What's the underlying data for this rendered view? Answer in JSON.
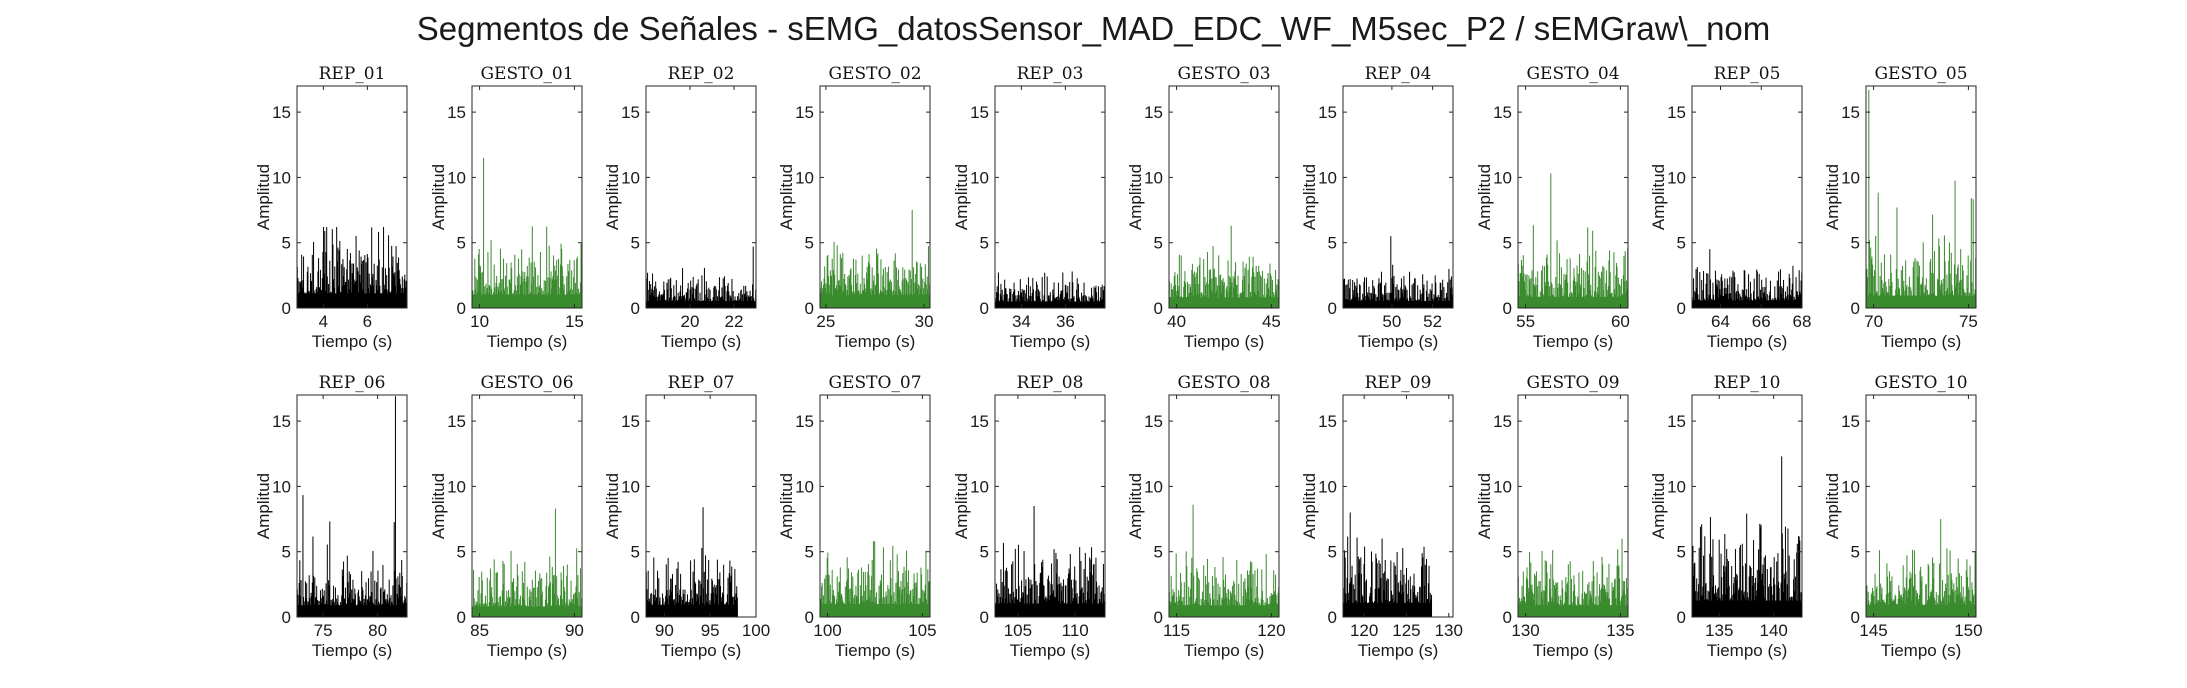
{
  "title": "Segmentos de Señales - sEMG_datosSensor_MAD_EDC_WF_M5sec_P2 / sEMGraw\\_nom",
  "colors": {
    "rep": "#000000",
    "gesto": "#3a8a2e",
    "axis": "#262626"
  },
  "chart_data": [
    {
      "type": "bar",
      "title": "REP_01",
      "kind": "rep",
      "xlabel": "Tiempo (s)",
      "ylabel": "Amplitud",
      "xlim": [
        2.8,
        7.8
      ],
      "ylim": [
        0,
        17
      ],
      "xticks": [
        4,
        6
      ],
      "yticks": [
        0,
        5,
        10,
        15
      ],
      "x_range": [
        2.8,
        7.8
      ],
      "mean_level": 2.5,
      "peak": 6.2
    },
    {
      "type": "bar",
      "title": "GESTO_01",
      "kind": "gesto",
      "xlabel": "Tiempo (s)",
      "ylabel": "Amplitud",
      "xlim": [
        9.6,
        15.4
      ],
      "ylim": [
        0,
        17
      ],
      "xticks": [
        10,
        15
      ],
      "yticks": [
        0,
        5,
        10,
        15
      ],
      "x_range": [
        9.6,
        15.4
      ],
      "mean_level": 2.3,
      "peak": 11.5
    },
    {
      "type": "bar",
      "title": "REP_02",
      "kind": "rep",
      "xlabel": "Tiempo (s)",
      "ylabel": "Amplitud",
      "xlim": [
        18,
        23
      ],
      "ylim": [
        0,
        17
      ],
      "xticks": [
        20,
        22
      ],
      "yticks": [
        0,
        5,
        10,
        15
      ],
      "x_range": [
        18,
        23
      ],
      "mean_level": 1.2,
      "peak": 4.7
    },
    {
      "type": "bar",
      "title": "GESTO_02",
      "kind": "gesto",
      "xlabel": "Tiempo (s)",
      "ylabel": "Amplitud",
      "xlim": [
        24.7,
        30.3
      ],
      "ylim": [
        0,
        17
      ],
      "xticks": [
        25,
        30
      ],
      "yticks": [
        0,
        5,
        10,
        15
      ],
      "x_range": [
        24.7,
        30.3
      ],
      "mean_level": 2.2,
      "peak": 7.5
    },
    {
      "type": "bar",
      "title": "REP_03",
      "kind": "rep",
      "xlabel": "Tiempo (s)",
      "ylabel": "Amplitud",
      "xlim": [
        32.8,
        37.8
      ],
      "ylim": [
        0,
        17
      ],
      "xticks": [
        34,
        36
      ],
      "yticks": [
        0,
        5,
        10,
        15
      ],
      "x_range": [
        32.8,
        37.8
      ],
      "mean_level": 1.1,
      "peak": 2.8
    },
    {
      "type": "bar",
      "title": "GESTO_03",
      "kind": "gesto",
      "xlabel": "Tiempo (s)",
      "ylabel": "Amplitud",
      "xlim": [
        39.6,
        45.4
      ],
      "ylim": [
        0,
        17
      ],
      "xticks": [
        40,
        45
      ],
      "yticks": [
        0,
        5,
        10,
        15
      ],
      "x_range": [
        39.6,
        45.4
      ],
      "mean_level": 1.8,
      "peak": 6.3
    },
    {
      "type": "bar",
      "title": "REP_04",
      "kind": "rep",
      "xlabel": "Tiempo (s)",
      "ylabel": "Amplitud",
      "xlim": [
        47.6,
        53
      ],
      "ylim": [
        0,
        17
      ],
      "xticks": [
        50,
        52
      ],
      "yticks": [
        0,
        5,
        10,
        15
      ],
      "x_range": [
        47.6,
        53
      ],
      "mean_level": 1.2,
      "peak": 5.5
    },
    {
      "type": "bar",
      "title": "GESTO_04",
      "kind": "gesto",
      "xlabel": "Tiempo (s)",
      "ylabel": "Amplitud",
      "xlim": [
        54.6,
        60.4
      ],
      "ylim": [
        0,
        17
      ],
      "xticks": [
        55,
        60
      ],
      "yticks": [
        0,
        5,
        10,
        15
      ],
      "x_range": [
        54.6,
        60.4
      ],
      "mean_level": 1.9,
      "peak": 10.3
    },
    {
      "type": "bar",
      "title": "REP_05",
      "kind": "rep",
      "xlabel": "Tiempo (s)",
      "ylabel": "Amplitud",
      "xlim": [
        62.6,
        68
      ],
      "ylim": [
        0,
        17
      ],
      "xticks": [
        64,
        66,
        68
      ],
      "yticks": [
        0,
        5,
        10,
        15
      ],
      "x_range": [
        62.6,
        68
      ],
      "mean_level": 1.3,
      "peak": 4.5
    },
    {
      "type": "bar",
      "title": "GESTO_05",
      "kind": "gesto",
      "xlabel": "Tiempo (s)",
      "ylabel": "Amplitud",
      "xlim": [
        69.6,
        75.4
      ],
      "ylim": [
        0,
        17
      ],
      "xticks": [
        70,
        75
      ],
      "yticks": [
        0,
        5,
        10,
        15
      ],
      "x_range": [
        69.6,
        75.4
      ],
      "mean_level": 2.1,
      "peak": 16.7
    },
    {
      "type": "bar",
      "title": "REP_06",
      "kind": "rep",
      "xlabel": "Tiempo (s)",
      "ylabel": "Amplitud",
      "xlim": [
        72.6,
        82.7
      ],
      "ylim": [
        0,
        17
      ],
      "xticks": [
        75,
        80
      ],
      "yticks": [
        0,
        5,
        10,
        15
      ],
      "x_range": [
        72.6,
        82.7
      ],
      "mean_level": 2.0,
      "peak": 16.9
    },
    {
      "type": "bar",
      "title": "GESTO_06",
      "kind": "gesto",
      "xlabel": "Tiempo (s)",
      "ylabel": "Amplitud",
      "xlim": [
        84.6,
        90.4
      ],
      "ylim": [
        0,
        17
      ],
      "xticks": [
        85,
        90
      ],
      "yticks": [
        0,
        5,
        10,
        15
      ],
      "x_range": [
        84.6,
        90.4
      ],
      "mean_level": 1.8,
      "peak": 8.3
    },
    {
      "type": "bar",
      "title": "REP_07",
      "kind": "rep",
      "xlabel": "Tiempo (s)",
      "ylabel": "Amplitud",
      "xlim": [
        88,
        100
      ],
      "ylim": [
        0,
        17
      ],
      "xticks": [
        90,
        95,
        100
      ],
      "yticks": [
        0,
        5,
        10,
        15
      ],
      "x_range": [
        88,
        98
      ],
      "mean_level": 2.1,
      "peak": 8.4
    },
    {
      "type": "bar",
      "title": "GESTO_07",
      "kind": "gesto",
      "xlabel": "Tiempo (s)",
      "ylabel": "Amplitud",
      "xlim": [
        99.6,
        105.4
      ],
      "ylim": [
        0,
        17
      ],
      "xticks": [
        100,
        105
      ],
      "yticks": [
        0,
        5,
        10,
        15
      ],
      "x_range": [
        99.6,
        105.4
      ],
      "mean_level": 2.2,
      "peak": 5.8
    },
    {
      "type": "bar",
      "title": "REP_08",
      "kind": "rep",
      "xlabel": "Tiempo (s)",
      "ylabel": "Amplitud",
      "xlim": [
        103,
        112.6
      ],
      "ylim": [
        0,
        17
      ],
      "xticks": [
        105,
        110
      ],
      "yticks": [
        0,
        5,
        10,
        15
      ],
      "x_range": [
        103,
        112.6
      ],
      "mean_level": 2.3,
      "peak": 8.5
    },
    {
      "type": "bar",
      "title": "GESTO_08",
      "kind": "gesto",
      "xlabel": "Tiempo (s)",
      "ylabel": "Amplitud",
      "xlim": [
        114.6,
        120.4
      ],
      "ylim": [
        0,
        17
      ],
      "xticks": [
        115,
        120
      ],
      "yticks": [
        0,
        5,
        10,
        15
      ],
      "x_range": [
        114.6,
        120.4
      ],
      "mean_level": 2.0,
      "peak": 8.6
    },
    {
      "type": "bar",
      "title": "REP_09",
      "kind": "rep",
      "xlabel": "Tiempo (s)",
      "ylabel": "Amplitud",
      "xlim": [
        117.5,
        130.5
      ],
      "ylim": [
        0,
        17
      ],
      "xticks": [
        120,
        125,
        130
      ],
      "yticks": [
        0,
        5,
        10,
        15
      ],
      "x_range": [
        117.5,
        128
      ],
      "mean_level": 2.4,
      "peak": 8.0
    },
    {
      "type": "bar",
      "title": "GESTO_09",
      "kind": "gesto",
      "xlabel": "Tiempo (s)",
      "ylabel": "Amplitud",
      "xlim": [
        129.6,
        135.4
      ],
      "ylim": [
        0,
        17
      ],
      "xticks": [
        130,
        135
      ],
      "yticks": [
        0,
        5,
        10,
        15
      ],
      "x_range": [
        129.6,
        135.4
      ],
      "mean_level": 2.0,
      "peak": 6.0
    },
    {
      "type": "bar",
      "title": "REP_10",
      "kind": "rep",
      "xlabel": "Tiempo (s)",
      "ylabel": "Amplitud",
      "xlim": [
        132.5,
        142.6
      ],
      "ylim": [
        0,
        17
      ],
      "xticks": [
        135,
        140
      ],
      "yticks": [
        0,
        5,
        10,
        15
      ],
      "x_range": [
        132.5,
        142.6
      ],
      "mean_level": 2.8,
      "peak": 12.3
    },
    {
      "type": "bar",
      "title": "GESTO_10",
      "kind": "gesto",
      "xlabel": "Tiempo (s)",
      "ylabel": "Amplitud",
      "xlim": [
        144.6,
        150.4
      ],
      "ylim": [
        0,
        17
      ],
      "xticks": [
        145,
        150
      ],
      "yticks": [
        0,
        5,
        10,
        15
      ],
      "x_range": [
        144.6,
        150.4
      ],
      "mean_level": 2.1,
      "peak": 7.5
    }
  ]
}
